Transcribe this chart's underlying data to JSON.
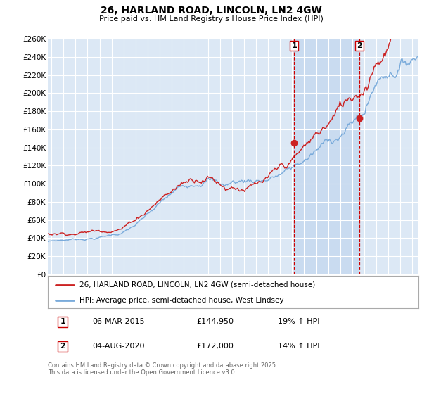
{
  "title": "26, HARLAND ROAD, LINCOLN, LN2 4GW",
  "subtitle": "Price paid vs. HM Land Registry's House Price Index (HPI)",
  "legend_property": "26, HARLAND ROAD, LINCOLN, LN2 4GW (semi-detached house)",
  "legend_hpi": "HPI: Average price, semi-detached house, West Lindsey",
  "annotation1_label": "1",
  "annotation1_date": "06-MAR-2015",
  "annotation1_price": "£144,950",
  "annotation1_hpi": "19% ↑ HPI",
  "annotation2_label": "2",
  "annotation2_date": "04-AUG-2020",
  "annotation2_price": "£172,000",
  "annotation2_hpi": "14% ↑ HPI",
  "footer": "Contains HM Land Registry data © Crown copyright and database right 2025.\nThis data is licensed under the Open Government Licence v3.0.",
  "property_color": "#cc2222",
  "hpi_color": "#7aabdb",
  "background_color": "#dce8f5",
  "shade_color": "#c5d8ef",
  "ylim": [
    0,
    260000
  ],
  "yticks": [
    0,
    20000,
    40000,
    60000,
    80000,
    100000,
    120000,
    140000,
    160000,
    180000,
    200000,
    220000,
    240000,
    260000
  ],
  "xlim_start": 1994.7,
  "xlim_end": 2025.5,
  "sale1_x": 2015.17,
  "sale2_x": 2020.58,
  "sale1_y": 144950,
  "sale2_y": 172000
}
